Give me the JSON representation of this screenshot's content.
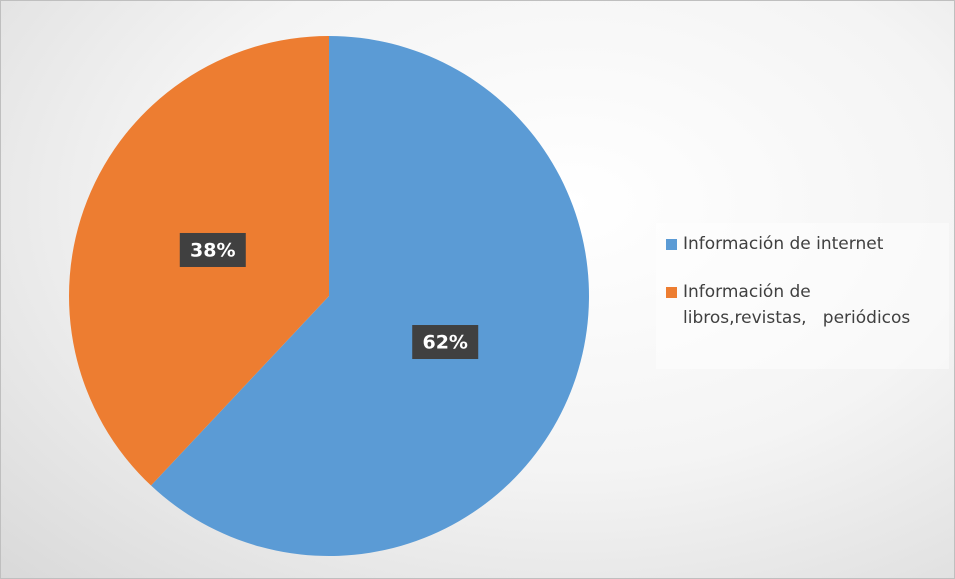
{
  "chart_data": {
    "type": "pie",
    "categories": [
      "Información de internet",
      "Información de libros,revistas,   periódicos"
    ],
    "values": [
      62,
      38
    ],
    "value_labels": [
      "62%",
      "38%"
    ],
    "colors": [
      "#5b9bd5",
      "#ed7d31"
    ],
    "legend": "right"
  }
}
